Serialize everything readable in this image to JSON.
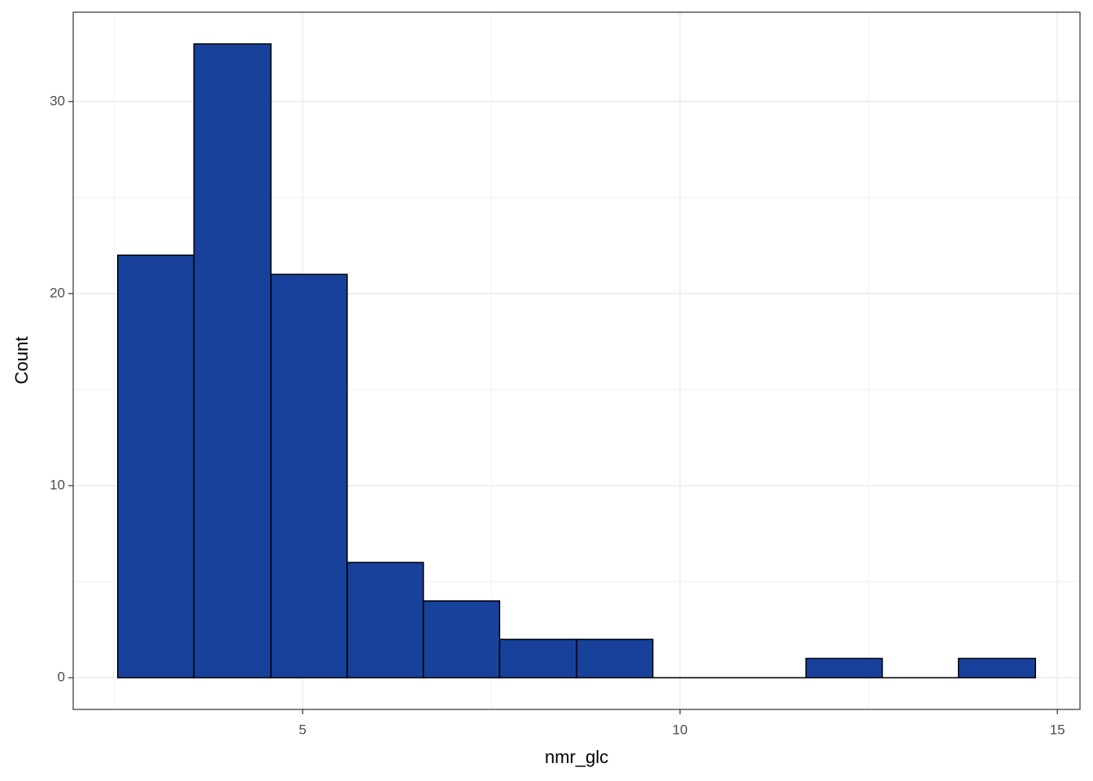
{
  "chart_data": {
    "type": "histogram",
    "x_label": "nmr_glc",
    "y_label": "Count",
    "bins": [
      2.55,
      3.56,
      4.58,
      5.59,
      6.6,
      7.61,
      8.63,
      9.64,
      10.65,
      11.67,
      12.68,
      13.69,
      14.71
    ],
    "values": [
      22,
      33,
      21,
      6,
      4,
      2,
      2,
      0,
      0,
      1,
      0,
      1
    ],
    "color": "#17419a",
    "edge_color": "#000000",
    "xlim": [
      1.96,
      15.3
    ],
    "ylim": [
      -1.65,
      34.65
    ],
    "xticks": [
      5,
      10,
      15
    ],
    "yticks": [
      0,
      10,
      20,
      30
    ],
    "x_minor_grid": [
      2.5,
      7.5,
      12.5
    ],
    "y_minor_grid": [
      5,
      15,
      25
    ],
    "grid": true
  }
}
